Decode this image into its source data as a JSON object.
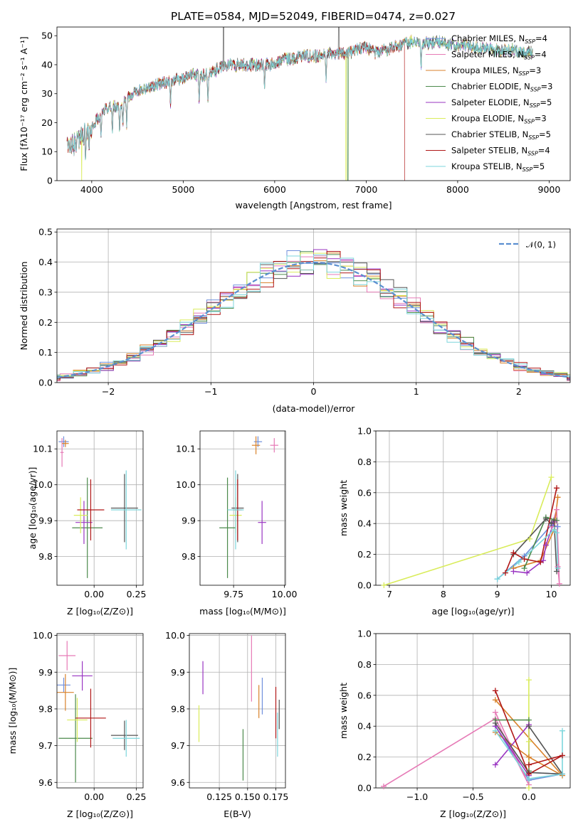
{
  "title": "PLATE=0584, MJD=52049, FIBERID=0474, z=0.027",
  "colors": {
    "Chabrier MILES": "#6f8fdc",
    "Salpeter MILES": "#e67ab6",
    "Kroupa MILES": "#d9822b",
    "Chabrier ELODIE": "#4c8a4c",
    "Salpeter ELODIE": "#9a35c2",
    "Kroupa ELODIE": "#d9ec5a",
    "Chabrier STELIB": "#555555",
    "Salpeter STELIB": "#b01717",
    "Kroupa STELIB": "#7dd6dc",
    "gauss": "#5b8fd0"
  },
  "chart_data": [
    {
      "type": "line",
      "xlabel": "wavelength [Angstrom, rest frame]",
      "ylabel": "Flux [fλ10⁻¹⁷ erg cm⁻² s⁻¹ A⁻¹]",
      "xlim": [
        3620,
        9230
      ],
      "ylim": [
        0,
        53
      ],
      "xticks": [
        "4000",
        "5000",
        "6000",
        "7000",
        "8000",
        "9000"
      ],
      "yticks": [
        "0",
        "10",
        "20",
        "30",
        "40",
        "50"
      ],
      "legend_placement": "top-right",
      "continuum_x": [
        3730,
        3800,
        3900,
        4000,
        4100,
        4200,
        4300,
        4400,
        4500,
        4600,
        4700,
        4800,
        4900,
        5000,
        5100,
        5200,
        5300,
        5400,
        5500,
        5600,
        5700,
        5800,
        5900,
        6000,
        6100,
        6200,
        6300,
        6400,
        6500,
        6600,
        6700,
        6800,
        6900,
        7000,
        7100,
        7200,
        7300,
        7400,
        7500,
        7600,
        7700,
        7800,
        7900,
        8000,
        8200,
        8400,
        8600,
        8800
      ],
      "continuum_y": [
        12,
        13,
        15,
        19,
        23,
        26,
        25,
        29,
        31,
        32,
        33,
        34,
        35,
        35,
        37,
        36,
        37,
        39,
        40,
        40,
        40,
        40,
        40,
        40,
        42,
        42,
        43,
        43,
        43,
        44,
        44,
        44,
        45,
        46,
        44,
        45,
        46,
        47,
        48,
        48,
        47,
        48,
        47,
        47,
        46,
        45,
        45,
        44
      ],
      "absorption_lines": [
        3934,
        3969,
        4102,
        4226,
        4304,
        4341,
        4383,
        4861,
        5175,
        5270,
        5890,
        6563,
        7600
      ],
      "series": [
        {
          "name": "Chabrier MILES, Nₛₛₚ=4",
          "label_main": "Chabrier MILES, N",
          "label_sub": "SSP",
          "label_tail": "=4"
        },
        {
          "name": "Salpeter MILES, Nₛₛₚ=4",
          "label_main": "Salpeter MILES, N",
          "label_sub": "SSP",
          "label_tail": "=4"
        },
        {
          "name": "Kroupa MILES, Nₛₛₚ=3",
          "label_main": "Kroupa MILES, N",
          "label_sub": "SSP",
          "label_tail": "=3"
        },
        {
          "name": "Chabrier ELODIE, Nₛₛₚ=3",
          "label_main": "Chabrier ELODIE, N",
          "label_sub": "SSP",
          "label_tail": "=3"
        },
        {
          "name": "Salpeter ELODIE, Nₛₛₚ=5",
          "label_main": "Salpeter ELODIE, N",
          "label_sub": "SSP",
          "label_tail": "=5"
        },
        {
          "name": "Kroupa ELODIE, Nₛₛₚ=3",
          "label_main": "Kroupa ELODIE, N",
          "label_sub": "SSP",
          "label_tail": "=3"
        },
        {
          "name": "Chabrier STELIB, Nₛₛₚ=5",
          "label_main": "Chabrier STELIB, N",
          "label_sub": "SSP",
          "label_tail": "=5"
        },
        {
          "name": "Salpeter STELIB, Nₛₛₚ=4",
          "label_main": "Salpeter STELIB, N",
          "label_sub": "SSP",
          "label_tail": "=4"
        },
        {
          "name": "Kroupa STELIB, Nₛₛₚ=5",
          "label_main": "Kroupa STELIB, N",
          "label_sub": "SSP",
          "label_tail": "=5"
        }
      ]
    },
    {
      "type": "histogram",
      "xlabel": "(data-model)/error",
      "ylabel": "Normed distribution",
      "xlim": [
        -2.5,
        2.5
      ],
      "ylim": [
        0,
        0.51
      ],
      "xticks": [
        "−2",
        "−1",
        "0",
        "1",
        "2"
      ],
      "yticks": [
        "0.0",
        "0.1",
        "0.2",
        "0.3",
        "0.4",
        "0.5"
      ],
      "grid": true,
      "legend_placement": "top-right",
      "reference_curve": {
        "name": "𝒩(0, 1)",
        "label_main": "𝒩(0, 1)",
        "mean": 0,
        "sigma": 1
      }
    },
    {
      "type": "scatter",
      "xlabel": "Z [log₁₀(Z/Z⊙)]",
      "ylabel": "age  [log₁₀(age/yr)]",
      "xlim": [
        -0.22,
        0.29
      ],
      "ylim": [
        9.72,
        10.15
      ],
      "xticks": [
        "0.00",
        "0.25"
      ],
      "yticks": [
        "9.8",
        "9.9",
        "10.0",
        "10.1"
      ],
      "points": [
        {
          "s": 0,
          "x": -0.18,
          "y": 10.12,
          "xerr": 0.03,
          "yerr": 0.015
        },
        {
          "s": 1,
          "x": -0.19,
          "y": 10.09,
          "xerr": 0.01,
          "yerr": 0.04
        },
        {
          "s": 2,
          "x": -0.17,
          "y": 10.115,
          "xerr": 0.02,
          "yerr": 0.01
        },
        {
          "s": 3,
          "x": -0.04,
          "y": 9.88,
          "xerr": 0.09,
          "yerr": 0.14
        },
        {
          "s": 4,
          "x": -0.06,
          "y": 9.895,
          "xerr": 0.05,
          "yerr": 0.06
        },
        {
          "s": 5,
          "x": -0.08,
          "y": 9.915,
          "xerr": 0.04,
          "yerr": 0.05
        },
        {
          "s": 6,
          "x": 0.18,
          "y": 9.935,
          "xerr": 0.08,
          "yerr": 0.095
        },
        {
          "s": 7,
          "x": -0.02,
          "y": 9.93,
          "xerr": 0.08,
          "yerr": 0.085
        },
        {
          "s": 8,
          "x": 0.19,
          "y": 9.93,
          "xerr": 0.09,
          "yerr": 0.11
        }
      ]
    },
    {
      "type": "scatter",
      "xlabel": "mass [log₁₀(M/M⊙)]",
      "ylabel": "",
      "xlim": [
        9.585,
        10.005
      ],
      "ylim": [
        9.72,
        10.15
      ],
      "xticks": [
        "9.75",
        "10.00"
      ],
      "yticks": [
        "9.8",
        "9.9",
        "10.0",
        "10.1"
      ],
      "points": [
        {
          "s": 0,
          "x": 9.87,
          "y": 10.12,
          "xerr": 0.02,
          "yerr": 0.015
        },
        {
          "s": 1,
          "x": 9.95,
          "y": 10.11,
          "xerr": 0.02,
          "yerr": 0.02
        },
        {
          "s": 2,
          "x": 9.86,
          "y": 10.11,
          "xerr": 0.02,
          "yerr": 0.025
        },
        {
          "s": 3,
          "x": 9.72,
          "y": 9.88,
          "xerr": 0.04,
          "yerr": 0.14
        },
        {
          "s": 4,
          "x": 9.89,
          "y": 9.895,
          "xerr": 0.02,
          "yerr": 0.06
        },
        {
          "s": 5,
          "x": 9.76,
          "y": 9.915,
          "xerr": 0.03,
          "yerr": 0.05
        },
        {
          "s": 6,
          "x": 9.77,
          "y": 9.935,
          "xerr": 0.03,
          "yerr": 0.095
        },
        {
          "s": 7,
          "x": 9.77,
          "y": 9.93,
          "xerr": 0.02,
          "yerr": 0.085
        },
        {
          "s": 8,
          "x": 9.76,
          "y": 9.93,
          "xerr": 0.04,
          "yerr": 0.11
        }
      ]
    },
    {
      "type": "line",
      "xlabel": "age  [log₁₀(age/yr)]",
      "ylabel": "mass weight",
      "xlim": [
        6.75,
        10.35
      ],
      "ylim": [
        0,
        1.0
      ],
      "xticks": [
        "7",
        "8",
        "9",
        "10"
      ],
      "yticks": [
        "0.0",
        "0.2",
        "0.4",
        "0.6",
        "0.8",
        "1.0"
      ],
      "series": [
        {
          "s": 0,
          "x": [
            9.0,
            9.5,
            10.0,
            10.12
          ],
          "y": [
            0.04,
            0.19,
            0.39,
            0.38
          ]
        },
        {
          "s": 1,
          "x": [
            10.0,
            10.1,
            10.15,
            10.12
          ],
          "y": [
            0.38,
            0.49,
            0.01,
            0.12
          ]
        },
        {
          "s": 2,
          "x": [
            9.3,
            9.8,
            10.05,
            10.12
          ],
          "y": [
            0.11,
            0.16,
            0.36,
            0.57
          ]
        },
        {
          "s": 3,
          "x": [
            9.5,
            9.9,
            10.1
          ],
          "y": [
            0.11,
            0.44,
            0.42
          ]
        },
        {
          "s": 4,
          "x": [
            9.3,
            9.55,
            9.85,
            9.9,
            10.05
          ],
          "y": [
            0.09,
            0.08,
            0.16,
            0.26,
            0.41
          ]
        },
        {
          "s": 5,
          "x": [
            6.9,
            9.6,
            10.0
          ],
          "y": [
            0.0,
            0.3,
            0.7
          ]
        },
        {
          "s": 6,
          "x": [
            9.3,
            9.9,
            10.0,
            10.05,
            10.1
          ],
          "y": [
            0.2,
            0.43,
            0.4,
            0.42,
            0.09
          ]
        },
        {
          "s": 7,
          "x": [
            9.15,
            9.3,
            9.5,
            9.8,
            10.1
          ],
          "y": [
            0.08,
            0.21,
            0.17,
            0.15,
            0.63
          ]
        },
        {
          "s": 8,
          "x": [
            9.0,
            9.4,
            10.05,
            10.1,
            10.12
          ],
          "y": [
            0.04,
            0.15,
            0.36,
            0.34,
            0.11
          ]
        }
      ]
    },
    {
      "type": "scatter",
      "xlabel": "Z [log₁₀(Z/Z⊙)]",
      "ylabel": "mass [log₁₀(M/M⊙)]",
      "xlim": [
        -0.22,
        0.29
      ],
      "ylim": [
        9.585,
        10.005
      ],
      "xticks": [
        "0.00",
        "0.25"
      ],
      "yticks": [
        "9.6",
        "9.7",
        "9.8",
        "9.9",
        "10.0"
      ],
      "points": [
        {
          "s": 0,
          "x": -0.18,
          "y": 9.865,
          "xerr": 0.04,
          "yerr": 0.02
        },
        {
          "s": 1,
          "x": -0.16,
          "y": 9.945,
          "xerr": 0.05,
          "yerr": 0.04
        },
        {
          "s": 2,
          "x": -0.17,
          "y": 9.845,
          "xerr": 0.05,
          "yerr": 0.05
        },
        {
          "s": 3,
          "x": -0.11,
          "y": 9.72,
          "xerr": 0.1,
          "yerr": 0.12
        },
        {
          "s": 4,
          "x": -0.07,
          "y": 9.89,
          "xerr": 0.06,
          "yerr": 0.04
        },
        {
          "s": 5,
          "x": -0.1,
          "y": 9.77,
          "xerr": 0.06,
          "yerr": 0.06
        },
        {
          "s": 6,
          "x": 0.18,
          "y": 9.728,
          "xerr": 0.08,
          "yerr": 0.04
        },
        {
          "s": 7,
          "x": -0.02,
          "y": 9.775,
          "xerr": 0.09,
          "yerr": 0.08
        },
        {
          "s": 8,
          "x": 0.19,
          "y": 9.72,
          "xerr": 0.08,
          "yerr": 0.05
        }
      ]
    },
    {
      "type": "scatter",
      "xlabel": "E(B-V)",
      "ylabel": "",
      "xlim": [
        0.0985,
        0.1835
      ],
      "ylim": [
        9.585,
        10.005
      ],
      "xticks": [
        "0.125",
        "0.150",
        "0.175"
      ],
      "yticks": [
        "9.6",
        "9.7",
        "9.8",
        "9.9",
        "10.0"
      ],
      "points": [
        {
          "s": 0,
          "x": 0.163,
          "y": 9.835,
          "yerr": 0.05
        },
        {
          "s": 1,
          "x": 0.1535,
          "y": 9.91,
          "yerr": 0.09
        },
        {
          "s": 2,
          "x": 0.16,
          "y": 9.82,
          "yerr": 0.045
        },
        {
          "s": 3,
          "x": 0.146,
          "y": 9.675,
          "yerr": 0.07
        },
        {
          "s": 4,
          "x": 0.1105,
          "y": 9.885,
          "yerr": 0.045
        },
        {
          "s": 5,
          "x": 0.107,
          "y": 9.76,
          "yerr": 0.05
        },
        {
          "s": 6,
          "x": 0.178,
          "y": 9.785,
          "yerr": 0.04
        },
        {
          "s": 7,
          "x": 0.175,
          "y": 9.79,
          "yerr": 0.07
        },
        {
          "s": 8,
          "x": 0.1765,
          "y": 9.73,
          "yerr": 0.06
        }
      ]
    },
    {
      "type": "line",
      "xlabel": "Z [log₁₀(Z/Z⊙)]",
      "ylabel": "mass weight",
      "xlim": [
        -1.37,
        0.37
      ],
      "ylim": [
        0,
        1.0
      ],
      "xticks": [
        "−1.0",
        "−0.5",
        "0.0"
      ],
      "yticks": [
        "0.0",
        "0.2",
        "0.4",
        "0.6",
        "0.8",
        "1.0"
      ],
      "series": [
        {
          "s": 0,
          "x": [
            -0.3,
            0.0,
            0.3,
            0.0
          ],
          "y": [
            0.4,
            0.05,
            0.09,
            0.1
          ]
        },
        {
          "s": 1,
          "x": [
            -1.3,
            -0.3,
            0.0,
            -0.3
          ],
          "y": [
            0.01,
            0.45,
            0.02,
            0.49
          ]
        },
        {
          "s": 2,
          "x": [
            -0.3,
            0.0,
            0.3,
            -0.3
          ],
          "y": [
            0.36,
            0.2,
            0.08,
            0.57
          ]
        },
        {
          "s": 3,
          "x": [
            -0.3,
            0.0,
            0.0
          ],
          "y": [
            0.44,
            0.44,
            0.11
          ]
        },
        {
          "s": 4,
          "x": [
            -0.3,
            0.0,
            0.0,
            -0.3
          ],
          "y": [
            0.15,
            0.41,
            0.08,
            0.4
          ]
        },
        {
          "s": 5,
          "x": [
            0.0,
            0.0,
            0.0
          ],
          "y": [
            0.7,
            0.3,
            0.0
          ]
        },
        {
          "s": 6,
          "x": [
            -0.3,
            0.0,
            0.3,
            0.0
          ],
          "y": [
            0.42,
            0.1,
            0.09,
            0.4
          ]
        },
        {
          "s": 7,
          "x": [
            -0.3,
            0.0,
            0.3,
            0.0
          ],
          "y": [
            0.63,
            0.09,
            0.21,
            0.15
          ]
        },
        {
          "s": 8,
          "x": [
            -0.3,
            0.0,
            0.3,
            0.3
          ],
          "y": [
            0.37,
            0.06,
            0.09,
            0.37
          ]
        }
      ]
    }
  ]
}
